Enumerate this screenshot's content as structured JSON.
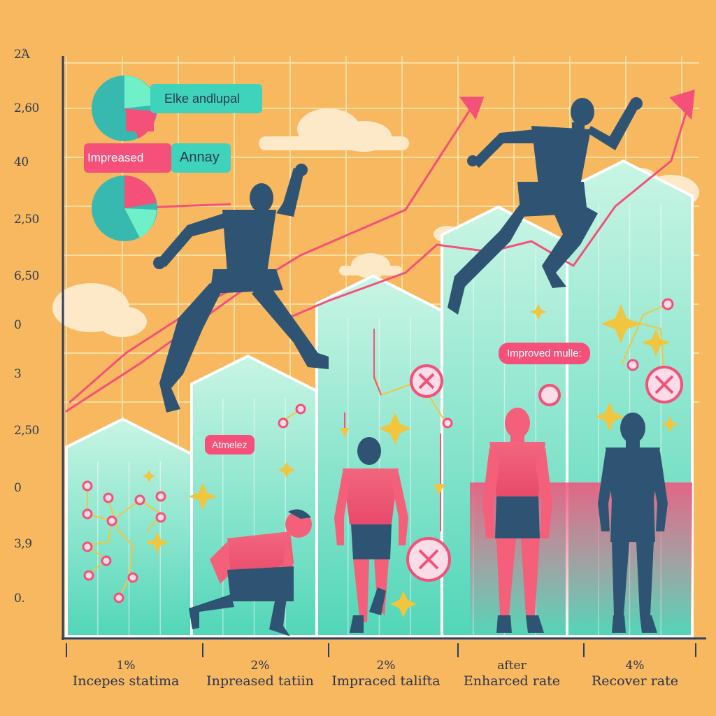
{
  "colors": {
    "background": "#f7b860",
    "teal": "#52d6b8",
    "mint": "#b9f2da",
    "coral": "#f4507a",
    "navy": "#2f5473",
    "gold": "#f2c53e"
  },
  "y_axis_ticks": [
    "2Ά",
    "2,60",
    "40",
    "2,50",
    "6,50",
    "0",
    "3",
    "2,50",
    "0",
    "3,9",
    "0."
  ],
  "categories": [
    {
      "pct": "1%",
      "label": "Incepes statima"
    },
    {
      "pct": "2%",
      "label": "Inpreased tatiin"
    },
    {
      "pct": "2%",
      "label": "Impraced talifta"
    },
    {
      "pct": "after",
      "label": "Enharced rate"
    },
    {
      "pct": "4%",
      "label": "Recover rate"
    }
  ],
  "step_area_levels": [
    0.33,
    0.44,
    0.58,
    0.7,
    0.78
  ],
  "callouts": {
    "legend_top": "Elke andlupal",
    "legend_left": "Impreased",
    "legend_right": "Annay",
    "athletes_tag": "Atmelez",
    "muscle_tag": "Improved mulle:"
  },
  "icons": [
    "pie-icon",
    "trend-arrow-icon",
    "sparkle-icon",
    "cancel-circle-icon",
    "cloud-icon"
  ]
}
